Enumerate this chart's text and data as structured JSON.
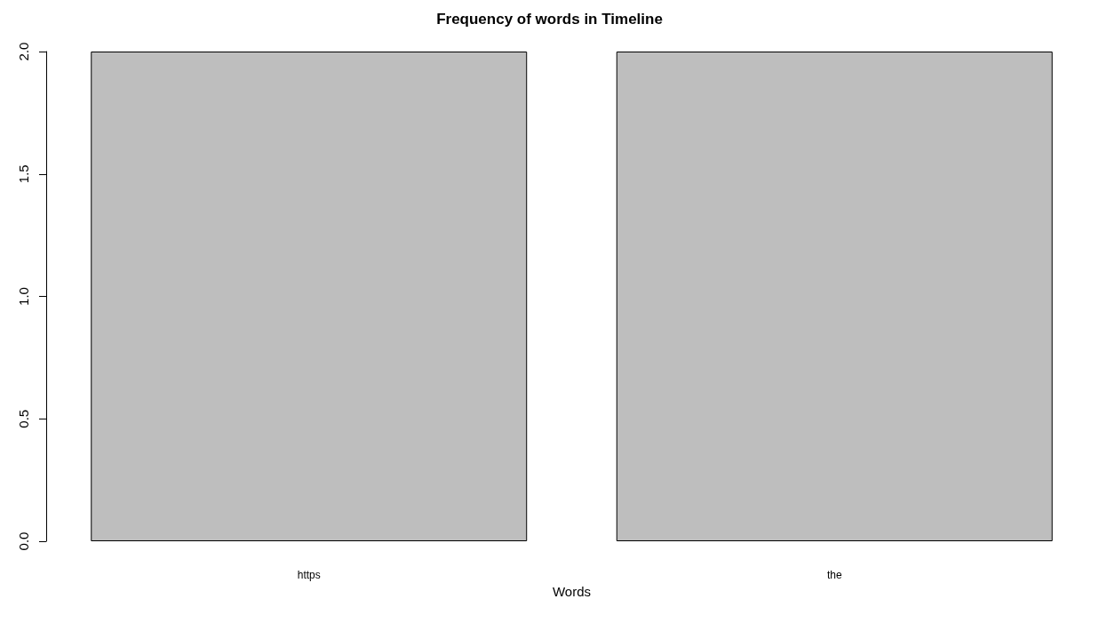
{
  "chart_data": {
    "type": "bar",
    "title": "Frequency of words in Timeline",
    "xlabel": "Words",
    "categories": [
      "https",
      "the"
    ],
    "values": [
      2,
      2
    ],
    "color": "#bebebe",
    "ylim": [
      0,
      2
    ],
    "yticks": [
      {
        "value": 0,
        "label": "0.0"
      },
      {
        "value": 0.5,
        "label": "0.5"
      },
      {
        "value": 1,
        "label": "1.0"
      },
      {
        "value": 1.5,
        "label": "1.5"
      },
      {
        "value": 2,
        "label": "2.0"
      }
    ]
  }
}
